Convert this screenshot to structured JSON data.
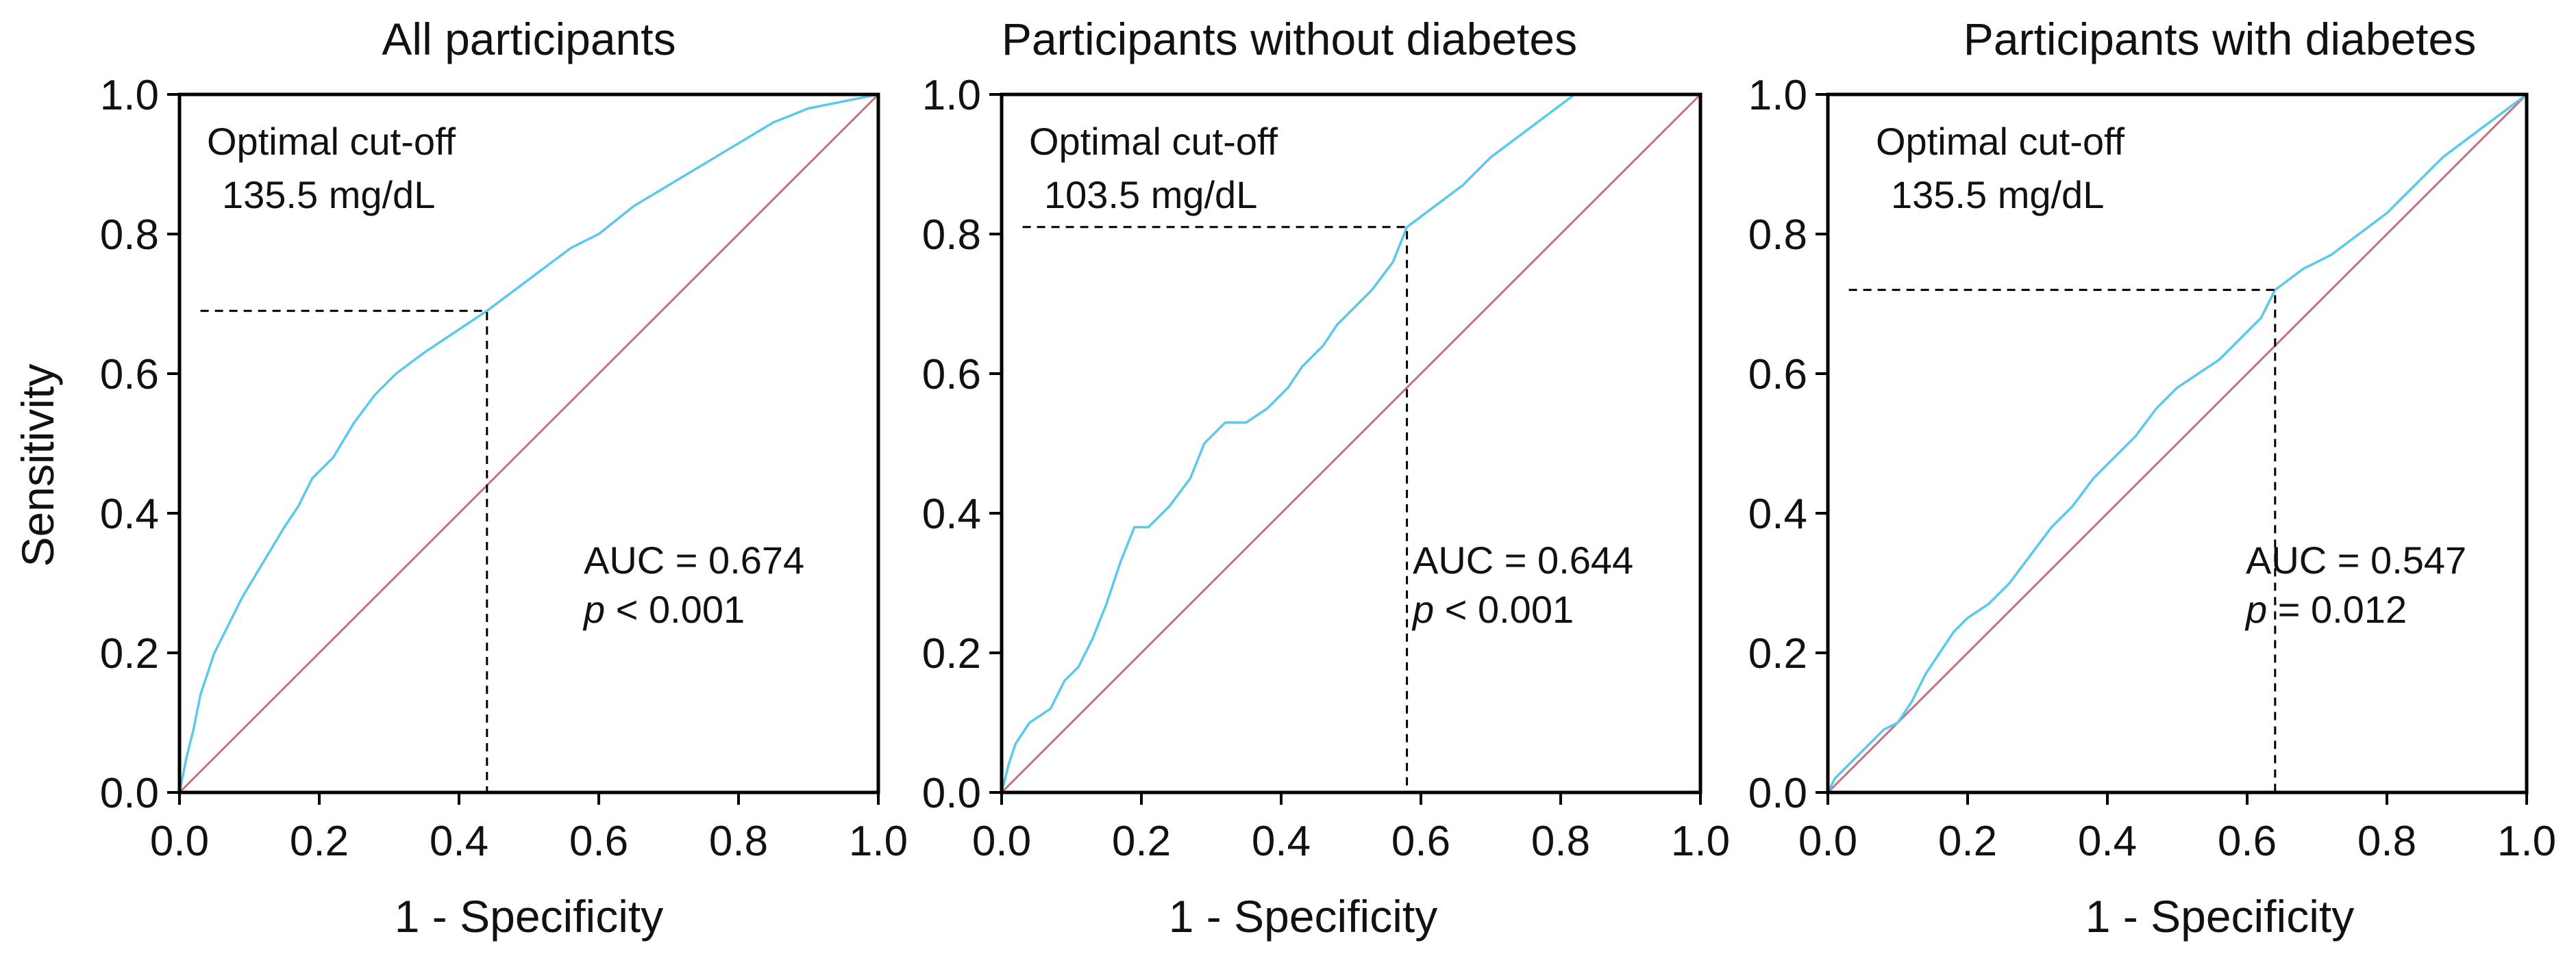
{
  "colors": {
    "roc_curve": "#5BC8EE",
    "reference_line": "#C8707E",
    "axes": "#000000",
    "cutoff_line": "#000000"
  },
  "y_axis_shared_label": "Sensitivity",
  "chart_data": [
    {
      "type": "line",
      "title": "All participants",
      "xlabel": "1 - Specificity",
      "ylabel": "Sensitivity",
      "xlim": [
        0,
        1
      ],
      "ylim": [
        0,
        1
      ],
      "xticks": [
        "0.0",
        "0.2",
        "0.4",
        "0.6",
        "0.8",
        "1.0"
      ],
      "yticks": [
        "0.0",
        "0.2",
        "0.4",
        "0.6",
        "0.8",
        "1.0"
      ],
      "cutoff_label": "Optimal cut-off",
      "cutoff_value": "135.5 mg/dL",
      "cutoff_point": [
        0.44,
        0.69
      ],
      "auc_text": "AUC = 0.674",
      "p_prefix": "p",
      "p_text": " < 0.001",
      "series": [
        {
          "name": "ROC curve",
          "x": [
            0,
            0.01,
            0.02,
            0.03,
            0.05,
            0.07,
            0.09,
            0.12,
            0.15,
            0.17,
            0.19,
            0.22,
            0.25,
            0.28,
            0.31,
            0.35,
            0.38,
            0.41,
            0.44,
            0.48,
            0.52,
            0.56,
            0.6,
            0.65,
            0.7,
            0.75,
            0.8,
            0.85,
            0.9,
            0.95,
            1.0
          ],
          "y": [
            0,
            0.05,
            0.09,
            0.14,
            0.2,
            0.24,
            0.28,
            0.33,
            0.38,
            0.41,
            0.45,
            0.48,
            0.53,
            0.57,
            0.6,
            0.63,
            0.65,
            0.67,
            0.69,
            0.72,
            0.75,
            0.78,
            0.8,
            0.84,
            0.87,
            0.9,
            0.93,
            0.96,
            0.98,
            0.99,
            1.0
          ]
        },
        {
          "name": "Reference",
          "x": [
            0,
            1
          ],
          "y": [
            0,
            1
          ]
        }
      ]
    },
    {
      "type": "line",
      "title": "Participants without diabetes",
      "xlabel": "1 - Specificity",
      "ylabel": "",
      "xlim": [
        0,
        1
      ],
      "ylim": [
        0,
        1
      ],
      "xticks": [
        "0.0",
        "0.2",
        "0.4",
        "0.6",
        "0.8",
        "1.0"
      ],
      "yticks": [
        "0.0",
        "0.2",
        "0.4",
        "0.6",
        "0.8",
        "1.0"
      ],
      "cutoff_label": "Optimal cut-off",
      "cutoff_value": "103.5 mg/dL",
      "cutoff_point": [
        0.58,
        0.81
      ],
      "auc_text": "AUC = 0.644",
      "p_prefix": "p",
      "p_text": " < 0.001",
      "series": [
        {
          "name": "ROC curve",
          "x": [
            0,
            0.01,
            0.02,
            0.04,
            0.07,
            0.09,
            0.11,
            0.13,
            0.15,
            0.17,
            0.19,
            0.21,
            0.24,
            0.27,
            0.29,
            0.32,
            0.35,
            0.38,
            0.41,
            0.43,
            0.46,
            0.48,
            0.5,
            0.53,
            0.56,
            0.58,
            0.62,
            0.66,
            0.7,
            0.74,
            0.78,
            0.82
          ],
          "y": [
            0,
            0.04,
            0.07,
            0.1,
            0.12,
            0.16,
            0.18,
            0.22,
            0.27,
            0.33,
            0.38,
            0.38,
            0.41,
            0.45,
            0.5,
            0.53,
            0.53,
            0.55,
            0.58,
            0.61,
            0.64,
            0.67,
            0.69,
            0.72,
            0.76,
            0.81,
            0.84,
            0.87,
            0.91,
            0.94,
            0.97,
            1.0
          ]
        },
        {
          "name": "Reference",
          "x": [
            0,
            1
          ],
          "y": [
            0,
            1
          ]
        }
      ]
    },
    {
      "type": "line",
      "title": "Participants with diabetes",
      "xlabel": "1 - Specificity",
      "ylabel": "",
      "xlim": [
        0,
        1
      ],
      "ylim": [
        0,
        1
      ],
      "xticks": [
        "0.0",
        "0.2",
        "0.4",
        "0.6",
        "0.8",
        "1.0"
      ],
      "yticks": [
        "0.0",
        "0.2",
        "0.4",
        "0.6",
        "0.8",
        "1.0"
      ],
      "cutoff_label": "Optimal cut-off",
      "cutoff_value": "135.5 mg/dL",
      "cutoff_point": [
        0.64,
        0.72
      ],
      "auc_text": "AUC = 0.547",
      "p_prefix": "p",
      "p_text": " = 0.012",
      "series": [
        {
          "name": "ROC curve",
          "x": [
            0,
            0.01,
            0.02,
            0.04,
            0.06,
            0.08,
            0.1,
            0.12,
            0.14,
            0.16,
            0.18,
            0.2,
            0.23,
            0.26,
            0.29,
            0.32,
            0.35,
            0.38,
            0.41,
            0.44,
            0.47,
            0.5,
            0.53,
            0.56,
            0.59,
            0.62,
            0.64,
            0.68,
            0.72,
            0.76,
            0.8,
            0.84,
            0.88,
            0.92,
            0.96,
            1.0
          ],
          "y": [
            0,
            0.02,
            0.03,
            0.05,
            0.07,
            0.09,
            0.1,
            0.13,
            0.17,
            0.2,
            0.23,
            0.25,
            0.27,
            0.3,
            0.34,
            0.38,
            0.41,
            0.45,
            0.48,
            0.51,
            0.55,
            0.58,
            0.6,
            0.62,
            0.65,
            0.68,
            0.72,
            0.75,
            0.77,
            0.8,
            0.83,
            0.87,
            0.91,
            0.94,
            0.97,
            1.0
          ]
        },
        {
          "name": "Reference",
          "x": [
            0,
            1
          ],
          "y": [
            0,
            1
          ]
        }
      ]
    }
  ]
}
